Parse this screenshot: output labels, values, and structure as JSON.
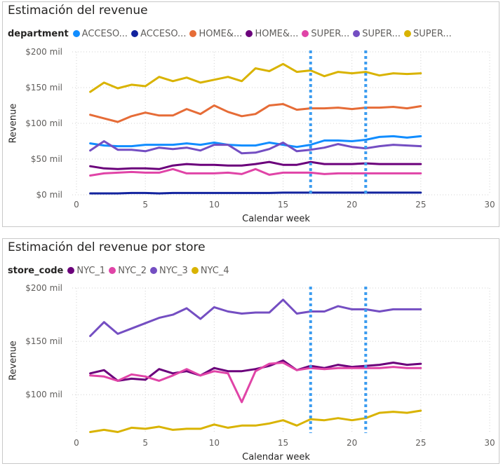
{
  "chart_data": [
    {
      "type": "line",
      "title": "Estimación del revenue",
      "legend_title": "department",
      "xlabel": "Calendar week",
      "ylabel": "Revenue",
      "xlim": [
        0,
        30
      ],
      "ylim": [
        0,
        200
      ],
      "x_ticks": [
        "0",
        "5",
        "10",
        "15",
        "20",
        "25",
        "30"
      ],
      "y_ticks": [
        {
          "value": 0,
          "label": "$0 mil"
        },
        {
          "value": 50,
          "label": "$50 mil"
        },
        {
          "value": 100,
          "label": "$100 mil"
        },
        {
          "value": 150,
          "label": "$150 mil"
        },
        {
          "value": 200,
          "label": "$200 mil"
        }
      ],
      "grid": true,
      "legend_position": "top",
      "reference_lines_x": [
        17,
        21
      ],
      "reference_line_color": "#3b9cf0",
      "x": [
        1,
        2,
        3,
        4,
        5,
        6,
        7,
        8,
        9,
        10,
        11,
        12,
        13,
        14,
        15,
        16,
        17,
        18,
        19,
        20,
        21,
        22,
        23,
        24,
        25
      ],
      "series": [
        {
          "name": "ACCESO...",
          "color": "#118dff",
          "values": [
            72,
            69,
            68,
            68,
            70,
            70,
            70,
            72,
            70,
            73,
            70,
            69,
            69,
            73,
            70,
            67,
            70,
            76,
            76,
            75,
            77,
            81,
            82,
            80,
            82
          ]
        },
        {
          "name": "ACCESO...",
          "color": "#12239e",
          "values": [
            2,
            2,
            2,
            2.5,
            2.5,
            2,
            2.5,
            2.5,
            2.5,
            2.5,
            2.5,
            2.5,
            2.5,
            2.5,
            3,
            3,
            3,
            3,
            3,
            3,
            3,
            3,
            3,
            3,
            3
          ]
        },
        {
          "name": "HOME&...",
          "color": "#e66c37",
          "values": [
            112,
            107,
            102,
            110,
            115,
            111,
            111,
            120,
            113,
            125,
            116,
            110,
            113,
            125,
            127,
            119,
            121,
            121,
            122,
            120,
            122,
            122,
            123,
            121,
            124
          ]
        },
        {
          "name": "HOME&...",
          "color": "#6b007b",
          "values": [
            40,
            37,
            36,
            37,
            37,
            36,
            41,
            43,
            42,
            42,
            41,
            41,
            43,
            46,
            42,
            42,
            46,
            43,
            43,
            43,
            44,
            43,
            43,
            43,
            43
          ]
        },
        {
          "name": "SUPER...",
          "color": "#e044a7",
          "values": [
            27,
            30,
            31,
            32,
            31,
            31,
            36,
            30,
            30,
            30,
            31,
            29,
            36,
            28,
            31,
            31,
            31,
            29,
            30,
            30,
            30,
            30,
            30,
            30,
            30
          ]
        },
        {
          "name": "SUPER...",
          "color": "#744ec2",
          "values": [
            62,
            75,
            63,
            63,
            61,
            66,
            64,
            66,
            62,
            70,
            70,
            58,
            59,
            64,
            73,
            61,
            63,
            66,
            71,
            67,
            65,
            68,
            70,
            69,
            68
          ]
        },
        {
          "name": "SUPER...",
          "color": "#d9b300",
          "values": [
            144,
            157,
            149,
            154,
            152,
            165,
            159,
            164,
            157,
            161,
            165,
            159,
            177,
            173,
            183,
            172,
            174,
            166,
            172,
            170,
            172,
            167,
            170,
            169,
            170
          ]
        }
      ]
    },
    {
      "type": "line",
      "title": "Estimación del revenue por store",
      "legend_title": "store_code",
      "xlabel": "Calendar week",
      "ylabel": "Revenue",
      "xlim": [
        0,
        30
      ],
      "ylim": [
        64,
        200
      ],
      "x_ticks": [
        "0",
        "5",
        "10",
        "15",
        "20",
        "25",
        "30"
      ],
      "y_ticks": [
        {
          "value": 100,
          "label": "$100 mil"
        },
        {
          "value": 150,
          "label": "$150 mil"
        },
        {
          "value": 200,
          "label": "$200 mil"
        }
      ],
      "grid": true,
      "legend_position": "top",
      "reference_lines_x": [
        17,
        21
      ],
      "reference_line_color": "#3b9cf0",
      "x": [
        1,
        2,
        3,
        4,
        5,
        6,
        7,
        8,
        9,
        10,
        11,
        12,
        13,
        14,
        15,
        16,
        17,
        18,
        19,
        20,
        21,
        22,
        23,
        24,
        25
      ],
      "series": [
        {
          "name": "NYC_1",
          "color": "#6b007b",
          "values": [
            120,
            123,
            113,
            115,
            114,
            124,
            120,
            122,
            118,
            125,
            122,
            122,
            124,
            127,
            132,
            123,
            127,
            125,
            128,
            126,
            127,
            128,
            130,
            128,
            129
          ]
        },
        {
          "name": "NYC_2",
          "color": "#e044a7",
          "values": [
            118,
            117,
            113,
            119,
            117,
            113,
            118,
            124,
            118,
            122,
            120,
            93,
            122,
            129,
            130,
            123,
            125,
            124,
            125,
            125,
            125,
            125,
            126,
            125,
            125
          ]
        },
        {
          "name": "NYC_3",
          "color": "#744ec2",
          "values": [
            155,
            168,
            157,
            162,
            167,
            172,
            175,
            181,
            171,
            182,
            178,
            176,
            177,
            177,
            189,
            176,
            178,
            178,
            183,
            180,
            180,
            178,
            180,
            180,
            180
          ]
        },
        {
          "name": "NYC_4",
          "color": "#d9b300",
          "values": [
            65,
            67,
            65,
            69,
            68,
            70,
            67,
            68,
            68,
            72,
            69,
            71,
            71,
            73,
            76,
            71,
            77,
            76,
            78,
            76,
            78,
            83,
            84,
            83,
            85
          ]
        }
      ]
    }
  ]
}
